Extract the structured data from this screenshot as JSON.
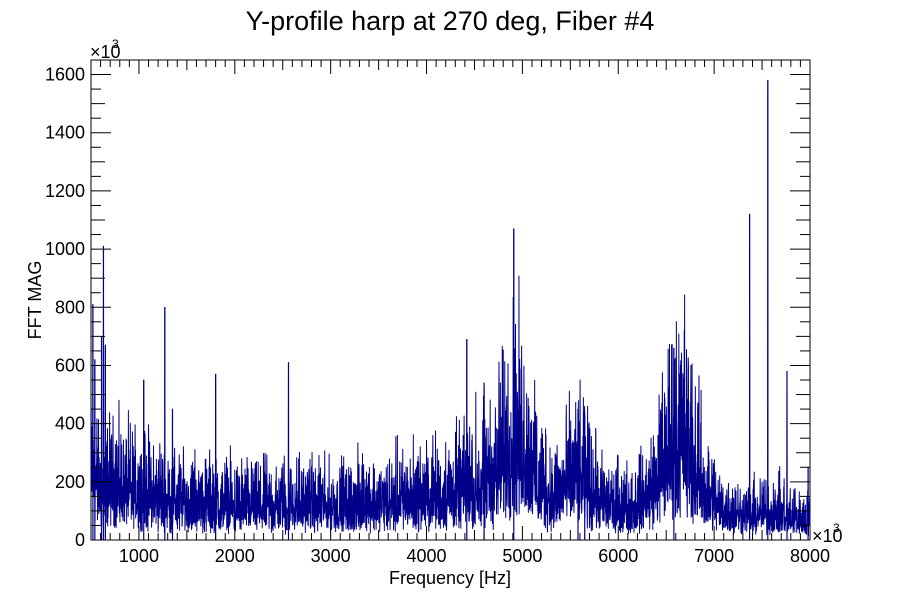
{
  "chart_data": {
    "type": "line",
    "title": "Y-profile harp at 270 deg, Fiber #4",
    "xlabel": "Frequency [Hz]",
    "ylabel": "FFT MAG",
    "x_multiplier": "×10",
    "x_multiplier_exp": "3",
    "y_multiplier": "×10",
    "y_multiplier_exp": "3",
    "xlim": [
      500,
      8000
    ],
    "ylim": [
      0,
      1650
    ],
    "x_ticks": [
      "1000",
      "2000",
      "3000",
      "4000",
      "5000",
      "6000",
      "7000",
      "8000"
    ],
    "y_ticks": [
      "0",
      "200",
      "400",
      "600",
      "800",
      "1000",
      "1200",
      "1400",
      "1600"
    ],
    "grid": false,
    "line_color": "#00008b",
    "envelope": [
      [
        500,
        300
      ],
      [
        560,
        260
      ],
      [
        620,
        230
      ],
      [
        700,
        250
      ],
      [
        800,
        240
      ],
      [
        900,
        230
      ],
      [
        1000,
        220
      ],
      [
        1200,
        200
      ],
      [
        1400,
        180
      ],
      [
        1600,
        175
      ],
      [
        1800,
        170
      ],
      [
        2000,
        165
      ],
      [
        2200,
        160
      ],
      [
        2400,
        160
      ],
      [
        2600,
        175
      ],
      [
        2800,
        170
      ],
      [
        3000,
        160
      ],
      [
        3200,
        165
      ],
      [
        3400,
        170
      ],
      [
        3600,
        180
      ],
      [
        3800,
        190
      ],
      [
        4000,
        200
      ],
      [
        4200,
        215
      ],
      [
        4400,
        240
      ],
      [
        4600,
        280
      ],
      [
        4750,
        340
      ],
      [
        4850,
        420
      ],
      [
        4920,
        480
      ],
      [
        5000,
        430
      ],
      [
        5100,
        320
      ],
      [
        5200,
        240
      ],
      [
        5300,
        200
      ],
      [
        5450,
        250
      ],
      [
        5550,
        300
      ],
      [
        5650,
        270
      ],
      [
        5800,
        190
      ],
      [
        6000,
        150
      ],
      [
        6200,
        160
      ],
      [
        6350,
        230
      ],
      [
        6480,
        380
      ],
      [
        6600,
        500
      ],
      [
        6700,
        470
      ],
      [
        6800,
        330
      ],
      [
        6950,
        200
      ],
      [
        7100,
        140
      ],
      [
        7300,
        120
      ],
      [
        7500,
        130
      ],
      [
        7700,
        120
      ],
      [
        7900,
        100
      ],
      [
        8000,
        90
      ]
    ],
    "spikes": [
      [
        520,
        810
      ],
      [
        540,
        620
      ],
      [
        610,
        700
      ],
      [
        630,
        1010
      ],
      [
        650,
        670
      ],
      [
        1050,
        550
      ],
      [
        1270,
        800
      ],
      [
        1350,
        450
      ],
      [
        1800,
        570
      ],
      [
        2560,
        610
      ],
      [
        4420,
        690
      ],
      [
        4600,
        540
      ],
      [
        4910,
        1070
      ],
      [
        5580,
        450
      ],
      [
        5650,
        430
      ],
      [
        6580,
        660
      ],
      [
        7370,
        1120
      ],
      [
        7560,
        1580
      ],
      [
        7760,
        580
      ],
      [
        7980,
        250
      ]
    ]
  }
}
